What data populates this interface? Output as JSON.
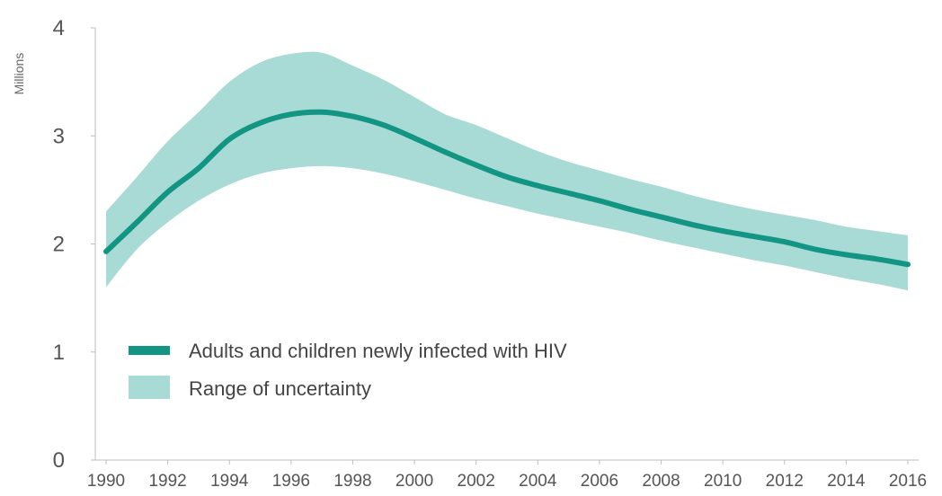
{
  "chart_data": {
    "type": "line",
    "title": "",
    "xlabel": "",
    "ylabel": "Millions",
    "xlim": [
      1990,
      2016
    ],
    "ylim": [
      0,
      4
    ],
    "yticks": [
      0,
      1,
      2,
      3,
      4
    ],
    "xticks": [
      1990,
      1992,
      1994,
      1996,
      1998,
      2000,
      2002,
      2004,
      2006,
      2008,
      2010,
      2012,
      2014,
      2016
    ],
    "grid": false,
    "legend_position": "lower-left",
    "series": [
      {
        "name": "Adults and children newly infected with HIV",
        "color": "#139584",
        "x": [
          1990,
          1991,
          1992,
          1993,
          1994,
          1995,
          1996,
          1997,
          1998,
          1999,
          2000,
          2001,
          2002,
          2003,
          2004,
          2005,
          2006,
          2007,
          2008,
          2009,
          2010,
          2011,
          2012,
          2013,
          2014,
          2015,
          2016
        ],
        "y": [
          1.93,
          2.2,
          2.48,
          2.7,
          2.97,
          3.12,
          3.2,
          3.22,
          3.18,
          3.1,
          2.98,
          2.85,
          2.73,
          2.62,
          2.54,
          2.47,
          2.4,
          2.32,
          2.25,
          2.18,
          2.12,
          2.07,
          2.02,
          1.95,
          1.9,
          1.86,
          1.81
        ]
      },
      {
        "name": "Range of uncertainty",
        "color": "#a9dbd6",
        "x": [
          1990,
          1991,
          1992,
          1993,
          1994,
          1995,
          1996,
          1997,
          1998,
          1999,
          2000,
          2001,
          2002,
          2003,
          2004,
          2005,
          2006,
          2007,
          2008,
          2009,
          2010,
          2011,
          2012,
          2013,
          2014,
          2015,
          2016
        ],
        "lower": [
          1.6,
          1.95,
          2.2,
          2.4,
          2.55,
          2.65,
          2.7,
          2.72,
          2.7,
          2.65,
          2.58,
          2.5,
          2.42,
          2.35,
          2.28,
          2.22,
          2.16,
          2.1,
          2.03,
          1.97,
          1.91,
          1.85,
          1.8,
          1.74,
          1.68,
          1.63,
          1.57
        ],
        "upper": [
          2.3,
          2.62,
          2.95,
          3.22,
          3.5,
          3.68,
          3.76,
          3.77,
          3.65,
          3.52,
          3.36,
          3.2,
          3.1,
          2.98,
          2.86,
          2.76,
          2.68,
          2.6,
          2.53,
          2.45,
          2.38,
          2.32,
          2.27,
          2.22,
          2.16,
          2.12,
          2.08
        ]
      }
    ]
  }
}
